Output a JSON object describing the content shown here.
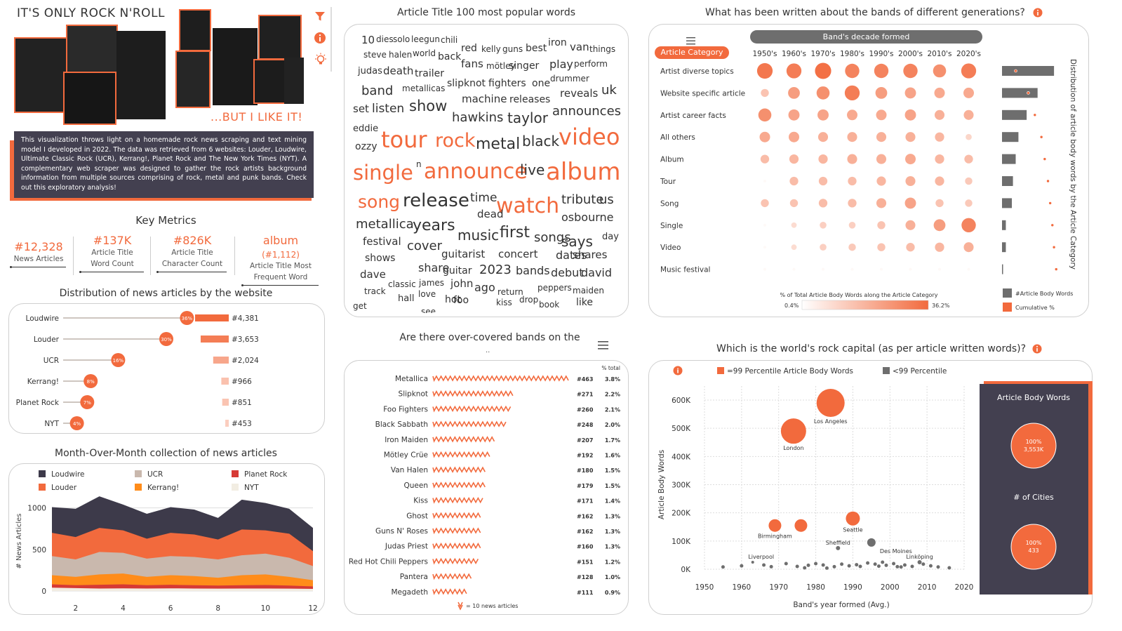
{
  "header": {
    "title": "IT'S ONLY ROCK N'ROLL",
    "subtitle": "...BUT I LIKE IT!",
    "intro": "This visualization throws light on a homemade rock news scraping and text mining model I developed in 2022. The data was retrieved from 6 websites: Louder, Loudwire, Ultimate Classic Rock (UCR), Kerrang!, Planet Rock and The New York Times (NYT). A complementary web scraper was designed to gather the rock artists background information from multiple sources comprising of rock, metal and punk bands. Check out this exploratory analysis!"
  },
  "toolbar": {
    "filter_icon": "filter-icon",
    "info_icon": "info-icon",
    "idea_icon": "lightbulb-icon"
  },
  "metrics": {
    "title": "Key Metrics",
    "items": [
      {
        "value": "#12,328",
        "extra": "",
        "label1": "News Articles",
        "label2": ""
      },
      {
        "value": "#137K",
        "extra": "",
        "label1": "Article Title",
        "label2": "Word Count"
      },
      {
        "value": "#826K",
        "extra": "",
        "label1": "Article Title",
        "label2": "Character Count"
      },
      {
        "value": "album",
        "extra": "(#1,112)",
        "label1": "Article Title Most",
        "label2": "Frequent Word"
      }
    ]
  },
  "websites": {
    "title": "Distribution of news articles by the website",
    "rows": [
      {
        "name": "Loudwire",
        "pct": 36,
        "pct_label": "36%",
        "count": 4381,
        "count_label": "#4,381"
      },
      {
        "name": "Louder",
        "pct": 30,
        "pct_label": "30%",
        "count": 3653,
        "count_label": "#3,653"
      },
      {
        "name": "UCR",
        "pct": 16,
        "pct_label": "16%",
        "count": 2024,
        "count_label": "#2,024"
      },
      {
        "name": "Kerrang!",
        "pct": 8,
        "pct_label": "8%",
        "count": 966,
        "count_label": "#966"
      },
      {
        "name": "Planet Rock",
        "pct": 7,
        "pct_label": "7%",
        "count": 851,
        "count_label": "#851"
      },
      {
        "name": "NYT",
        "pct": 4,
        "pct_label": "4%",
        "count": 453,
        "count_label": "#453"
      }
    ]
  },
  "monthly": {
    "title": "Month-Over-Month collection of news articles",
    "legend": [
      {
        "name": "Loudwire",
        "color": "#3d3a4a"
      },
      {
        "name": "UCR",
        "color": "#c9b8ad"
      },
      {
        "name": "Planet Rock",
        "color": "#d63a35"
      },
      {
        "name": "Louder",
        "color": "#f26a3d"
      },
      {
        "name": "Kerrang!",
        "color": "#ff8c1a"
      },
      {
        "name": "NYT",
        "color": "#f2ede2"
      }
    ]
  },
  "wordcloud": {
    "title": "Article Title  100 most popular words",
    "words": [
      [
        "10",
        15,
        "#333"
      ],
      [
        "dies",
        12,
        "#333"
      ],
      [
        "solo",
        12,
        "#333"
      ],
      [
        "leegun",
        12,
        "#333"
      ],
      [
        "chili",
        12,
        "#333"
      ],
      [
        "red",
        14,
        "#333"
      ],
      [
        "kelly",
        12,
        "#333"
      ],
      [
        "guns",
        12,
        "#333"
      ],
      [
        "best",
        14,
        "#333"
      ],
      [
        "iron",
        14,
        "#333"
      ],
      [
        "van",
        15,
        "#333"
      ],
      [
        "things",
        12,
        "#333"
      ],
      [
        "steve",
        12,
        "#333"
      ],
      [
        "halen",
        12,
        "#333"
      ],
      [
        "world",
        12,
        "#333"
      ],
      [
        "back",
        14,
        "#333"
      ],
      [
        "fans",
        15,
        "#333"
      ],
      [
        "mötley",
        12,
        "#333"
      ],
      [
        "singer",
        14,
        "#333"
      ],
      [
        "play",
        16,
        "#333"
      ],
      [
        "perform",
        12,
        "#333"
      ],
      [
        "judas",
        13,
        "#333"
      ],
      [
        "death",
        15,
        "#333"
      ],
      [
        "trailer",
        14,
        "#333"
      ],
      [
        "drummer",
        12,
        "#333"
      ],
      [
        "band",
        18,
        "#333"
      ],
      [
        "metallicas",
        12,
        "#333"
      ],
      [
        "slipknot",
        14,
        "#333"
      ],
      [
        "fighters",
        14,
        "#333"
      ],
      [
        "one",
        14,
        "#333"
      ],
      [
        "reveals",
        15,
        "#333"
      ],
      [
        "uk",
        18,
        "#333"
      ],
      [
        "machine",
        15,
        "#333"
      ],
      [
        "releases",
        14,
        "#333"
      ],
      [
        "set",
        15,
        "#333"
      ],
      [
        "listen",
        17,
        "#333"
      ],
      [
        "show",
        21,
        "#333"
      ],
      [
        "announces",
        18,
        "#333"
      ],
      [
        "hawkins",
        18,
        "#333"
      ],
      [
        "taylor",
        20,
        "#333"
      ],
      [
        "eddie",
        13,
        "#333"
      ],
      [
        "ozzy",
        14,
        "#333"
      ],
      [
        "tour",
        32,
        "#f26a3d"
      ],
      [
        "rock",
        27,
        "#f26a3d"
      ],
      [
        "metal",
        22,
        "#333"
      ],
      [
        "black",
        20,
        "#333"
      ],
      [
        "video",
        32,
        "#f26a3d"
      ],
      [
        "n",
        12,
        "#333"
      ],
      [
        "single",
        29,
        "#f26a3d"
      ],
      [
        "announce",
        30,
        "#f26a3d"
      ],
      [
        "live",
        20,
        "#333"
      ],
      [
        "album",
        34,
        "#f26a3d"
      ],
      [
        "time",
        17,
        "#333"
      ],
      [
        "tribute",
        18,
        "#333"
      ],
      [
        "us",
        18,
        "#333"
      ],
      [
        "song",
        25,
        "#f26a3d"
      ],
      [
        "release",
        26,
        "#333"
      ],
      [
        "watch",
        30,
        "#f26a3d"
      ],
      [
        "dead",
        15,
        "#333"
      ],
      [
        "osbourne",
        16,
        "#333"
      ],
      [
        "metallica",
        18,
        "#333"
      ],
      [
        "years",
        22,
        "#333"
      ],
      [
        "music",
        20,
        "#333"
      ],
      [
        "first",
        22,
        "#333"
      ],
      [
        "songs",
        18,
        "#333"
      ],
      [
        "says",
        20,
        "#333"
      ],
      [
        "day",
        13,
        "#333"
      ],
      [
        "festival",
        15,
        "#333"
      ],
      [
        "cover",
        18,
        "#333"
      ],
      [
        "shows",
        14,
        "#333"
      ],
      [
        "guitarist",
        15,
        "#333"
      ],
      [
        "concert",
        15,
        "#333"
      ],
      [
        "dates",
        16,
        "#333"
      ],
      [
        "shares",
        15,
        "#333"
      ],
      [
        "share",
        16,
        "#333"
      ],
      [
        "dave",
        15,
        "#333"
      ],
      [
        "guitar",
        14,
        "#333"
      ],
      [
        "2023",
        18,
        "#333"
      ],
      [
        "bands",
        16,
        "#333"
      ],
      [
        "debut",
        16,
        "#333"
      ],
      [
        "david",
        16,
        "#333"
      ],
      [
        "classic",
        12,
        "#333"
      ],
      [
        "james",
        12,
        "#333"
      ],
      [
        "john",
        15,
        "#333"
      ],
      [
        "ago",
        16,
        "#333"
      ],
      [
        "return",
        12,
        "#333"
      ],
      [
        "peppers",
        12,
        "#333"
      ],
      [
        "maiden",
        12,
        "#333"
      ],
      [
        "track",
        12,
        "#333"
      ],
      [
        "hall",
        13,
        "#333"
      ],
      [
        "love",
        12,
        "#333"
      ],
      [
        "hot",
        14,
        "#333"
      ],
      [
        "foo",
        14,
        "#333"
      ],
      [
        "kiss",
        12,
        "#333"
      ],
      [
        "drop",
        12,
        "#333"
      ],
      [
        "book",
        12,
        "#333"
      ],
      [
        "like",
        14,
        "#333"
      ],
      [
        "get",
        12,
        "#333"
      ],
      [
        "see",
        12,
        "#333"
      ]
    ]
  },
  "bands": {
    "title": "Are there over-covered bands on the",
    "title_cont": "..",
    "pct_header": "% total",
    "legend": "= 10 news articles",
    "rows": [
      {
        "name": "Metallica",
        "count": 463,
        "count_label": "#463",
        "pct": "3.8%"
      },
      {
        "name": "Slipknot",
        "count": 271,
        "count_label": "#271",
        "pct": "2.2%"
      },
      {
        "name": "Foo Fighters",
        "count": 260,
        "count_label": "#260",
        "pct": "2.1%"
      },
      {
        "name": "Black Sabbath",
        "count": 248,
        "count_label": "#248",
        "pct": "2.0%"
      },
      {
        "name": "Iron Maiden",
        "count": 207,
        "count_label": "#207",
        "pct": "1.7%"
      },
      {
        "name": "Mötley Crüe",
        "count": 192,
        "count_label": "#192",
        "pct": "1.6%"
      },
      {
        "name": "Van Halen",
        "count": 180,
        "count_label": "#180",
        "pct": "1.5%"
      },
      {
        "name": "Queen",
        "count": 179,
        "count_label": "#179",
        "pct": "1.5%"
      },
      {
        "name": "Kiss",
        "count": 171,
        "count_label": "#171",
        "pct": "1.4%"
      },
      {
        "name": "Ghost",
        "count": 162,
        "count_label": "#162",
        "pct": "1.3%"
      },
      {
        "name": "Guns N' Roses",
        "count": 162,
        "count_label": "#162",
        "pct": "1.3%"
      },
      {
        "name": "Judas Priest",
        "count": 160,
        "count_label": "#160",
        "pct": "1.3%"
      },
      {
        "name": "Red Hot Chili Peppers",
        "count": 151,
        "count_label": "#151",
        "pct": "1.2%"
      },
      {
        "name": "Pantera",
        "count": 128,
        "count_label": "#128",
        "pct": "1.0%"
      },
      {
        "name": "Megadeth",
        "count": 111,
        "count_label": "#111",
        "pct": "0.9%"
      }
    ]
  },
  "generations": {
    "title": "What has been written about the bands of different generations?",
    "decade_header": "Band's decade formed",
    "category_header": "Article Category",
    "decades": [
      "1950's",
      "1960's",
      "1970's",
      "1980's",
      "1990's",
      "2000's",
      "2010's",
      "2020's"
    ],
    "categories": [
      "Artist diverse topics",
      "Website specific article",
      "Artist career facts",
      "All others",
      "Album",
      "Tour",
      "Song",
      "Single",
      "Video",
      "Music festival"
    ],
    "sizes": [
      [
        0.9,
        0.85,
        0.95,
        0.8,
        0.8,
        0.8,
        0.7,
        0.85
      ],
      [
        0.3,
        0.6,
        0.7,
        0.85,
        0.6,
        0.55,
        0.5,
        0.5
      ],
      [
        0.7,
        0.55,
        0.55,
        0.5,
        0.5,
        0.55,
        0.45,
        0.45
      ],
      [
        0.5,
        0.5,
        0.45,
        0.45,
        0.45,
        0.45,
        0.4,
        0.15
      ],
      [
        0.35,
        0.4,
        0.4,
        0.45,
        0.45,
        0.5,
        0.4,
        0.35
      ],
      [
        0,
        0.35,
        0.35,
        0.35,
        0.4,
        0.45,
        0.4,
        0.25
      ],
      [
        0.3,
        0.3,
        0.35,
        0.35,
        0.45,
        0.55,
        0.3,
        0.25
      ],
      [
        0,
        0.1,
        0.2,
        0.2,
        0.3,
        0.45,
        0.6,
        0.8
      ],
      [
        0,
        0.1,
        0.2,
        0.25,
        0.3,
        0.35,
        0.4,
        0.45
      ],
      [
        0,
        0,
        0,
        0,
        0,
        0,
        0,
        0
      ]
    ],
    "bar_values": [
      0.95,
      0.65,
      0.45,
      0.3,
      0.25,
      0.2,
      0.18,
      0.07,
      0.07,
      0.01
    ],
    "cumulative": [
      0.25,
      0.48,
      0.6,
      0.72,
      0.78,
      0.84,
      0.88,
      0.92,
      0.95,
      0.99
    ],
    "side_label": "Distribution of article body words by the Article Category",
    "scale_title": "% of Total Article Body Words along the Article Category",
    "scale_min": "0.4%",
    "scale_max": "36.2%",
    "legend_bar": "#Article Body Words",
    "legend_cum": "Cumulative %"
  },
  "capital": {
    "title": "Which is the world's rock capital (as per article written words)?",
    "legend_top": "=99 Percentile Article Body Words",
    "legend_rest": "<99 Percentile",
    "y_label": "Article Body Words",
    "x_label": "Band's year formed (Avg.)",
    "y_ticks": [
      "0K",
      "100K",
      "200K",
      "300K",
      "400K",
      "500K",
      "600K"
    ],
    "x_ticks": [
      "1950",
      "1960",
      "1970",
      "1980",
      "1990",
      "2000",
      "2010",
      "2020"
    ],
    "cities": [
      {
        "name": "Los Angeles",
        "year": 1984,
        "words": 590000,
        "r": 20,
        "top": true
      },
      {
        "name": "London",
        "year": 1974,
        "words": 490000,
        "r": 18,
        "top": true
      },
      {
        "name": "Seattle",
        "year": 1990,
        "words": 180000,
        "r": 10,
        "top": true
      },
      {
        "name": "Birmingham",
        "year": 1969,
        "words": 155000,
        "r": 9,
        "top": true
      },
      {
        "name": "",
        "year": 1976,
        "words": 155000,
        "r": 9,
        "top": true
      },
      {
        "name": "Des Moines",
        "year": 1995,
        "words": 95000,
        "r": 6,
        "top": false
      },
      {
        "name": "Sheffield",
        "year": 1986,
        "words": 75000,
        "r": 3,
        "top": false
      },
      {
        "name": "Liverpool",
        "year": 1963,
        "words": 25000,
        "r": 2,
        "top": false
      },
      {
        "name": "Linköping",
        "year": 2008,
        "words": 25000,
        "r": 3,
        "top": false
      }
    ],
    "panel_title": "Article Body Words",
    "panel_val1_pct": "100%",
    "panel_val1": "3,553K",
    "panel_mid": "# of Cities",
    "panel_val2_pct": "100%",
    "panel_val2": "433"
  },
  "colors": {
    "accent": "#f26a3d",
    "dark": "#434050"
  }
}
